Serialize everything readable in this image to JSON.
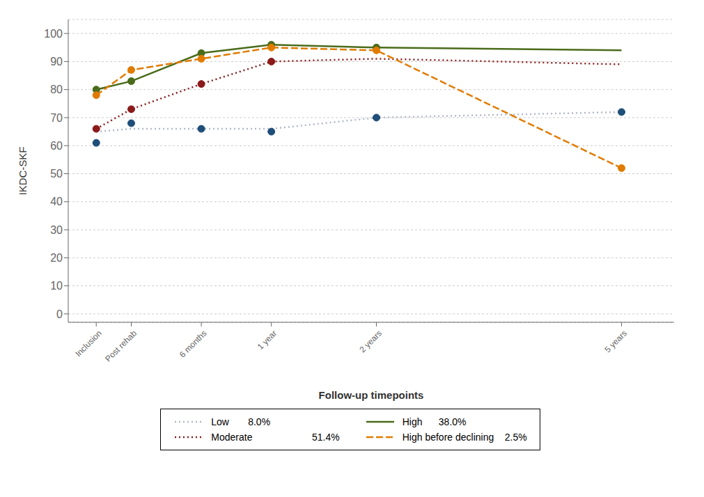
{
  "chart_data": {
    "type": "line",
    "x": [
      0,
      1,
      3,
      5,
      8,
      15
    ],
    "xlabel": "Follow-up timepoints",
    "ylabel": "IKDC-SKF",
    "xlim": [
      -0.8,
      16.5
    ],
    "xticks": [
      {
        "value": 0,
        "label": "Inclusion"
      },
      {
        "value": 1,
        "label": "Post rehab"
      },
      {
        "value": 3,
        "label": "6 months"
      },
      {
        "value": 5,
        "label": "1 year"
      },
      {
        "value": 8,
        "label": "2 years"
      },
      {
        "value": 15,
        "label": "5 years"
      }
    ],
    "ylim": [
      -3,
      105
    ],
    "yticks": [
      0,
      10,
      20,
      30,
      40,
      50,
      60,
      70,
      80,
      90,
      100
    ],
    "grid": true,
    "legend": "bottom",
    "series": [
      {
        "name": "Low       8.0%",
        "color": "#b0b8c8",
        "line_style": "dotted",
        "values": [
          65,
          66,
          66,
          66,
          70,
          72
        ]
      },
      {
        "type": "scatter",
        "color": "#1f4e79",
        "marker": "circle",
        "values": [
          61,
          68,
          66,
          65,
          70,
          72
        ]
      },
      {
        "name": "Moderate                      51.4%",
        "color": "#8b1a1a",
        "line_style": "dotted",
        "values": [
          66,
          73,
          82,
          90,
          91,
          89
        ]
      },
      {
        "type": "scatter",
        "color": "#8b1a1a",
        "marker": "circle",
        "values": [
          66,
          73,
          82,
          90,
          null,
          null
        ]
      },
      {
        "name": "High      38.0%",
        "color": "#4a6b1a",
        "line_style": "solid",
        "values": [
          80,
          83,
          93,
          96,
          95,
          94
        ]
      },
      {
        "type": "scatter",
        "color": "#4a6b1a",
        "marker": "circle",
        "values": [
          80,
          83,
          93,
          96,
          95,
          null
        ]
      },
      {
        "name": "High before declining    2.5%",
        "color": "#e07b00",
        "line_style": "dashed",
        "values": [
          78,
          87,
          91,
          95,
          94,
          52
        ]
      },
      {
        "type": "scatter",
        "color": "#e07b00",
        "marker": "circle",
        "values": [
          78,
          87,
          91,
          95,
          94,
          52
        ]
      }
    ]
  }
}
